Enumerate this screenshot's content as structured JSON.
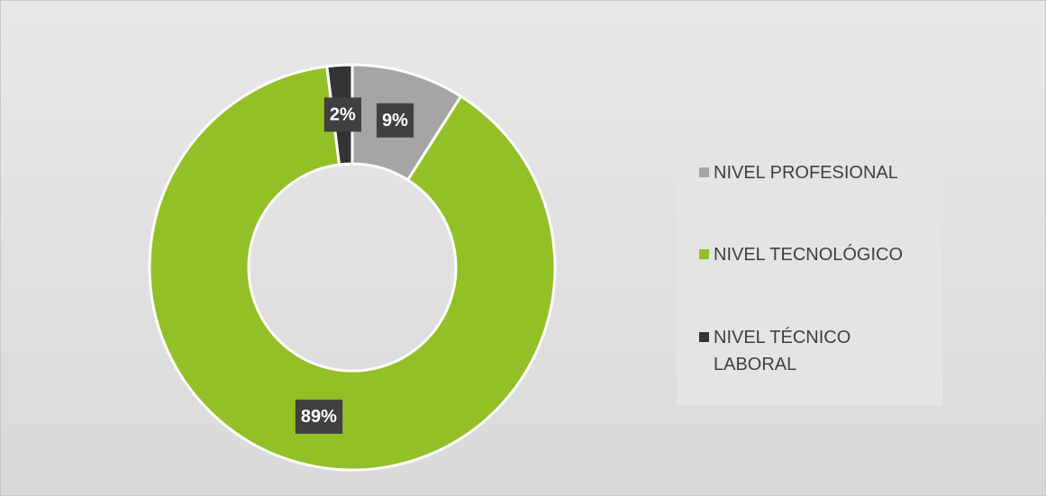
{
  "chart_data": {
    "type": "donut",
    "categories": [
      "NIVEL PROFESIONAL",
      "NIVEL TECNOLÓGICO",
      "NIVEL TÉCNICO LABORAL"
    ],
    "values": [
      9,
      89,
      2
    ],
    "value_labels": [
      "9%",
      "89%",
      "2%"
    ],
    "colors": [
      "#a5a5a5",
      "#92c026",
      "#333333"
    ],
    "legend": "right"
  }
}
